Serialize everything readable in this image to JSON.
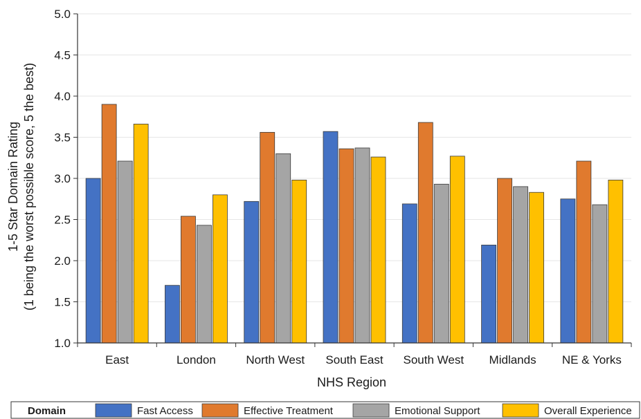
{
  "chart_data": {
    "type": "bar",
    "xlabel": "NHS Region",
    "ylabel": "1-5 Star Domain Rating",
    "ylabel_sub": "(1 being the worst possible score, 5 the best)",
    "ylim": [
      1.0,
      5.0
    ],
    "yticks": [
      "1.0",
      "1.5",
      "2.0",
      "2.5",
      "3.0",
      "3.5",
      "4.0",
      "4.5",
      "5.0"
    ],
    "grid": true,
    "legend_position": "bottom",
    "legend_title": "Domain",
    "categories": [
      "East",
      "London",
      "North West",
      "South East",
      "South West",
      "Midlands",
      "NE & Yorks"
    ],
    "series": [
      {
        "name": "Fast Access",
        "color": "#4472C4",
        "values": [
          3.0,
          1.7,
          2.72,
          3.57,
          2.69,
          2.19,
          2.75
        ]
      },
      {
        "name": "Effective Treatment",
        "color": "#E07A2E",
        "values": [
          3.9,
          2.54,
          3.56,
          3.36,
          3.68,
          3.0,
          3.21
        ]
      },
      {
        "name": "Emotional Support",
        "color": "#A5A5A5",
        "values": [
          3.21,
          2.43,
          3.3,
          3.37,
          2.93,
          2.9,
          2.68
        ]
      },
      {
        "name": "Overall Experience",
        "color": "#FFC000",
        "values": [
          3.66,
          2.8,
          2.98,
          3.26,
          3.27,
          2.83,
          2.98
        ]
      }
    ]
  }
}
